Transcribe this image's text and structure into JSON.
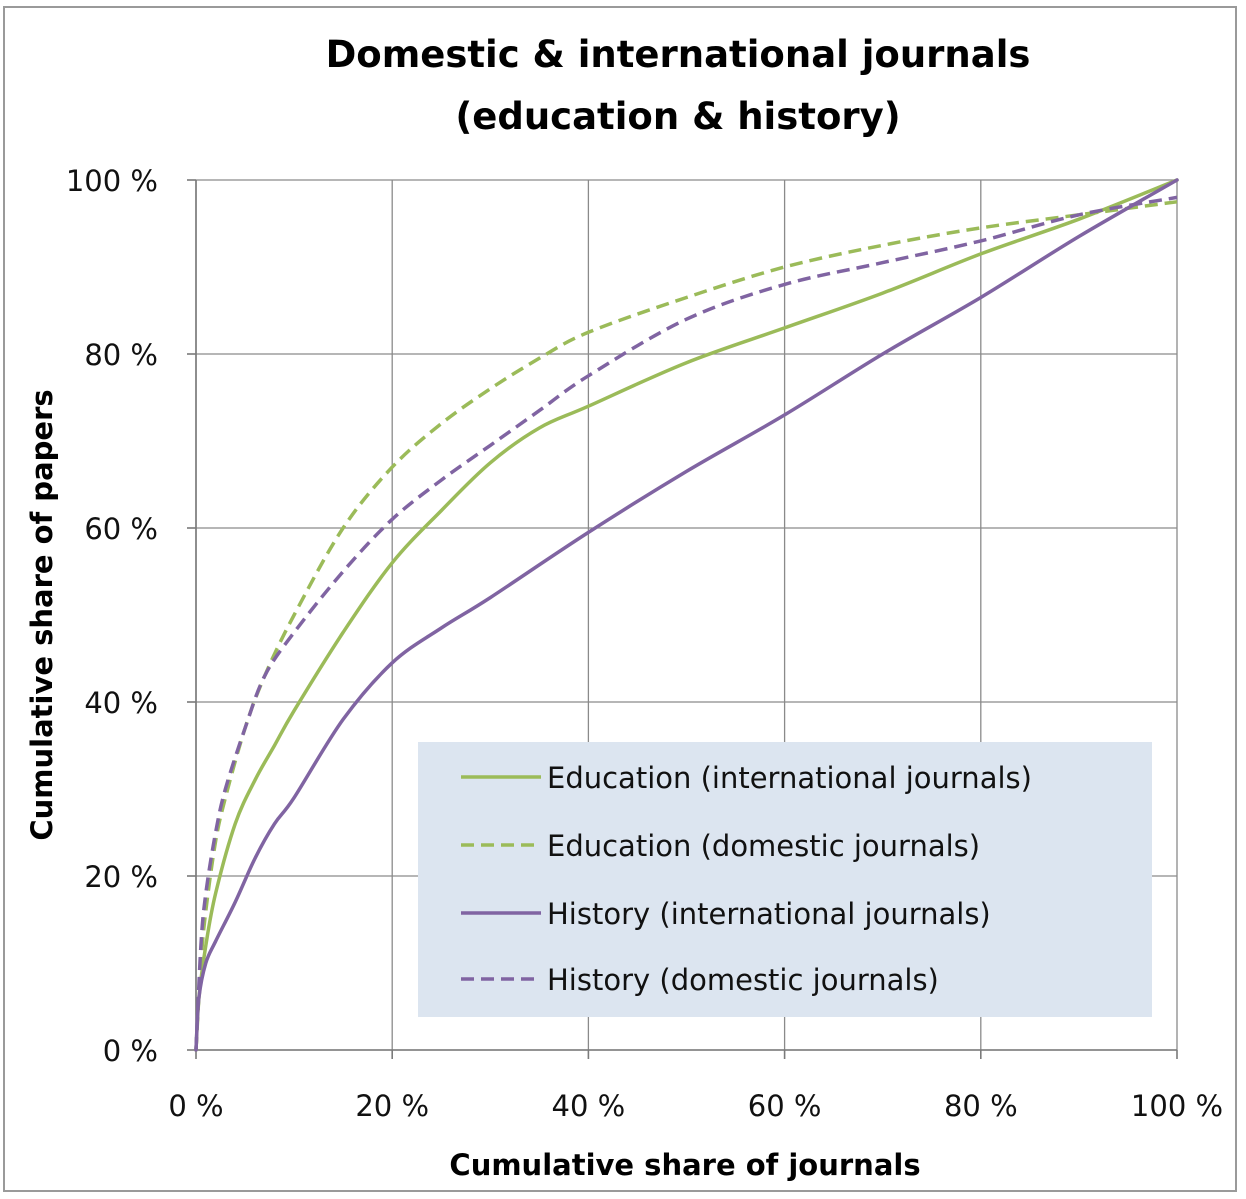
{
  "chart_data": {
    "type": "line",
    "title": [
      "Domestic & international journals",
      "(education & history)"
    ],
    "xlabel": "Cumulative share of journals",
    "ylabel": "Cumulative share of papers",
    "xlim": [
      0,
      100
    ],
    "ylim": [
      0,
      100
    ],
    "xticks": [
      0,
      20,
      40,
      60,
      80,
      100
    ],
    "yticks": [
      0,
      20,
      40,
      60,
      80,
      100
    ],
    "xtick_labels": [
      "0 %",
      "20 %",
      "40 %",
      "60 %",
      "80 %",
      "100 %"
    ],
    "ytick_labels": [
      "0 %",
      "20 %",
      "40 %",
      "60 %",
      "80 %",
      "100 %"
    ],
    "grid": true,
    "legend_position": "bottom-right",
    "series": [
      {
        "name": "Education (international journals)",
        "color": "#9bbb59",
        "dashed": false,
        "points": [
          [
            0,
            0
          ],
          [
            0.3,
            6
          ],
          [
            1,
            12
          ],
          [
            2,
            18
          ],
          [
            4,
            26
          ],
          [
            6,
            31
          ],
          [
            8,
            35
          ],
          [
            10,
            39
          ],
          [
            15,
            48
          ],
          [
            20,
            56
          ],
          [
            25,
            62
          ],
          [
            30,
            67.5
          ],
          [
            35,
            71.5
          ],
          [
            40,
            74
          ],
          [
            50,
            79
          ],
          [
            60,
            83
          ],
          [
            70,
            87
          ],
          [
            80,
            91.5
          ],
          [
            90,
            95.5
          ],
          [
            100,
            100
          ]
        ]
      },
      {
        "name": "Education (domestic journals)",
        "color": "#9bbb59",
        "dashed": true,
        "points": [
          [
            0,
            0
          ],
          [
            0.5,
            10
          ],
          [
            1,
            16
          ],
          [
            2,
            24
          ],
          [
            3,
            29
          ],
          [
            5,
            37
          ],
          [
            7,
            43
          ],
          [
            10,
            50
          ],
          [
            15,
            60
          ],
          [
            20,
            67
          ],
          [
            25,
            72
          ],
          [
            30,
            76
          ],
          [
            35,
            79.5
          ],
          [
            40,
            82.5
          ],
          [
            50,
            86.5
          ],
          [
            60,
            90
          ],
          [
            70,
            92.5
          ],
          [
            80,
            94.5
          ],
          [
            90,
            96
          ],
          [
            100,
            97.5
          ]
        ]
      },
      {
        "name": "History (international journals)",
        "color": "#8064a2",
        "dashed": false,
        "points": [
          [
            0,
            0
          ],
          [
            0.3,
            6
          ],
          [
            1,
            10
          ],
          [
            2,
            12.5
          ],
          [
            4,
            17
          ],
          [
            6,
            22
          ],
          [
            8,
            26
          ],
          [
            10,
            29
          ],
          [
            15,
            38
          ],
          [
            20,
            44.5
          ],
          [
            25,
            48.5
          ],
          [
            30,
            52
          ],
          [
            40,
            59.5
          ],
          [
            50,
            66.5
          ],
          [
            60,
            73
          ],
          [
            70,
            80
          ],
          [
            80,
            86.5
          ],
          [
            90,
            93.5
          ],
          [
            100,
            100
          ]
        ]
      },
      {
        "name": "History (domestic journals)",
        "color": "#8064a2",
        "dashed": true,
        "points": [
          [
            0,
            0
          ],
          [
            0.5,
            12
          ],
          [
            1,
            18
          ],
          [
            2,
            25
          ],
          [
            3,
            30
          ],
          [
            5,
            37
          ],
          [
            7,
            43
          ],
          [
            10,
            48
          ],
          [
            15,
            55
          ],
          [
            20,
            61
          ],
          [
            25,
            65.5
          ],
          [
            30,
            69.5
          ],
          [
            35,
            73.5
          ],
          [
            40,
            77.5
          ],
          [
            50,
            84
          ],
          [
            60,
            88
          ],
          [
            70,
            90.5
          ],
          [
            80,
            93
          ],
          [
            90,
            96
          ],
          [
            100,
            98
          ]
        ]
      }
    ]
  }
}
